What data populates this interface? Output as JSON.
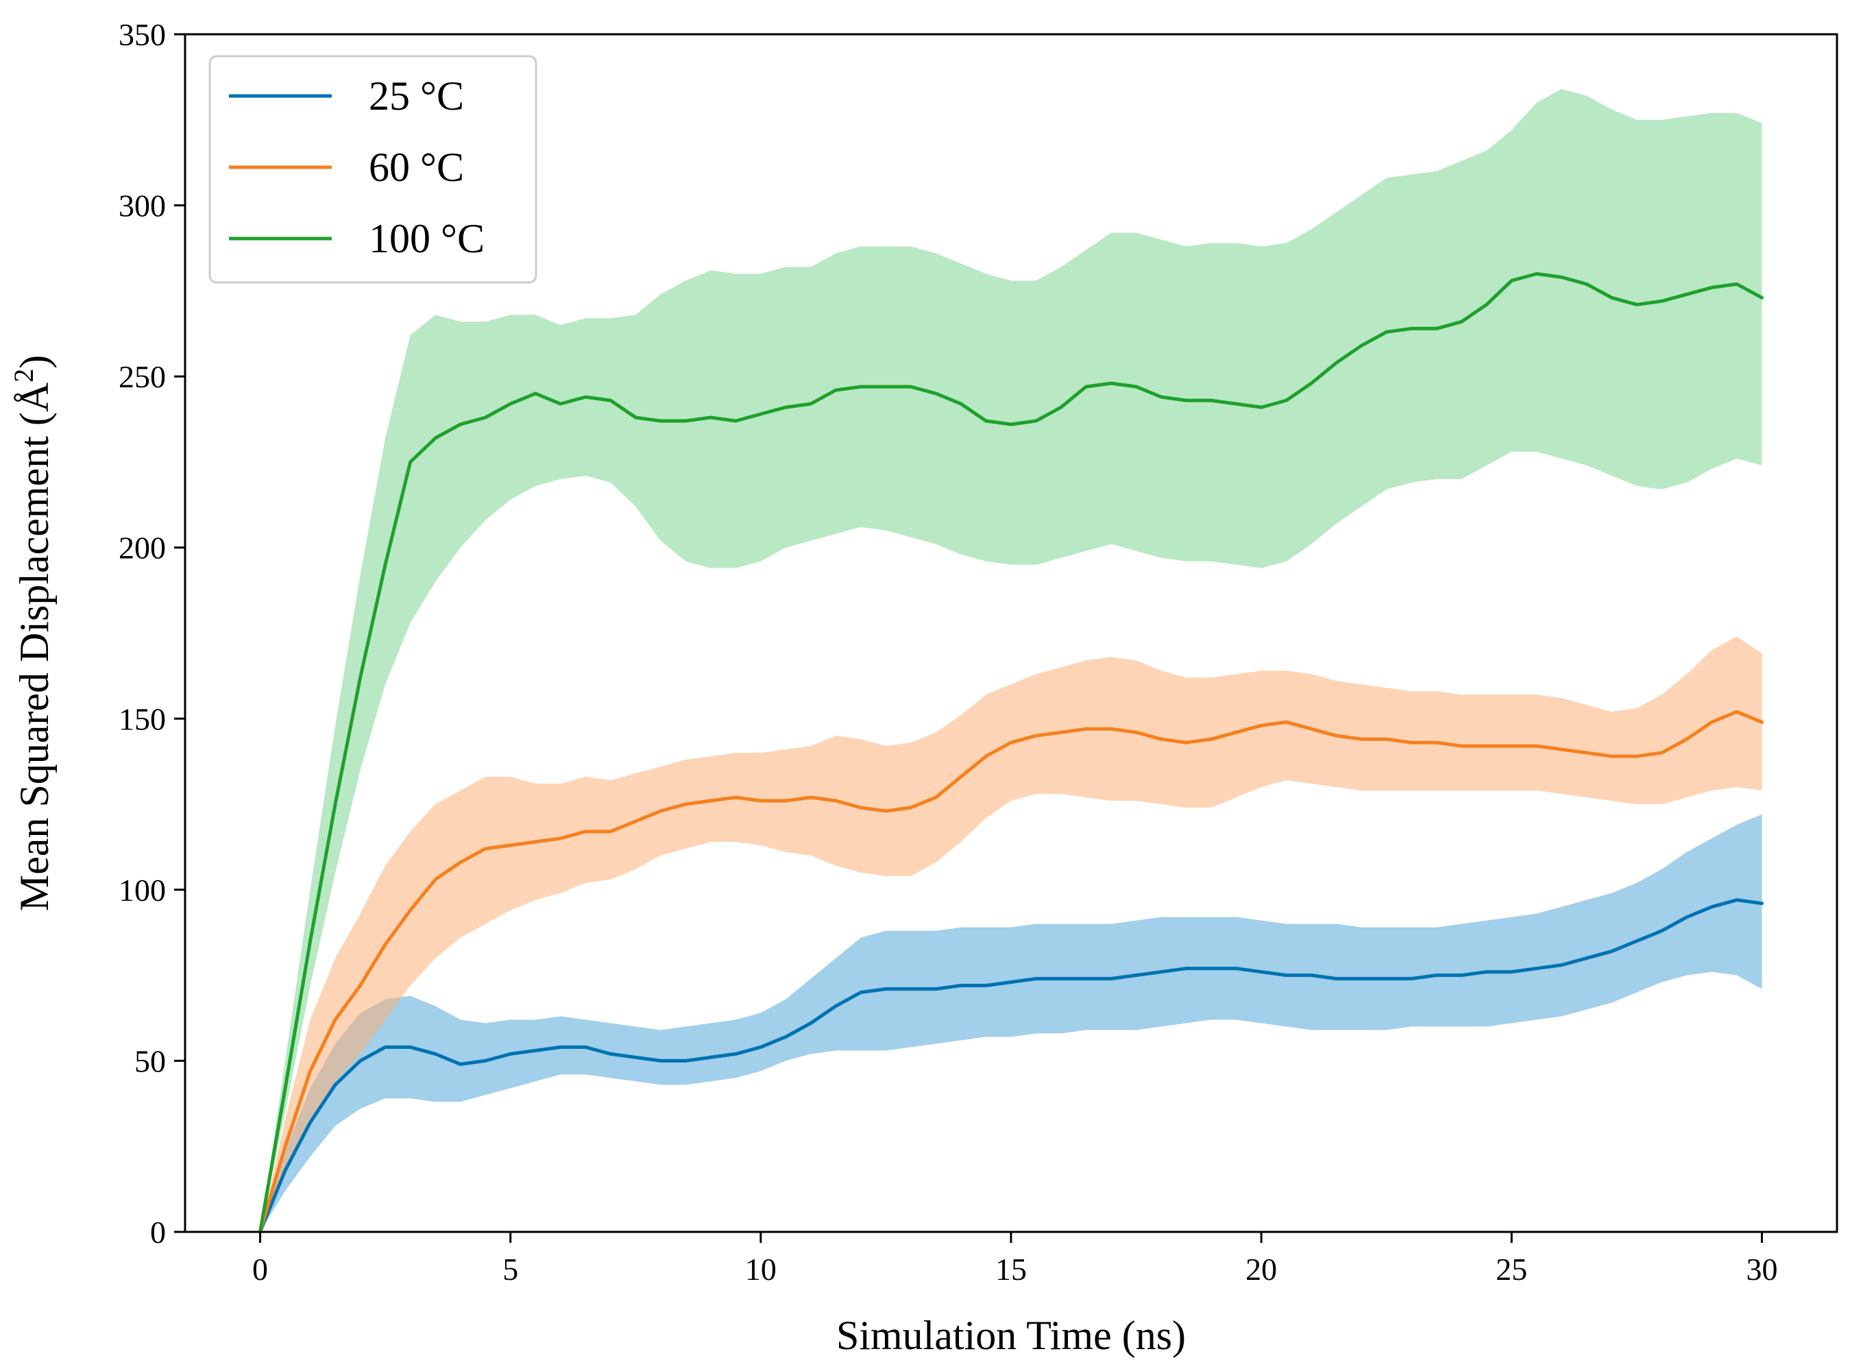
{
  "chart_data": {
    "type": "line",
    "title": "",
    "xlabel": "Simulation Time (ns)",
    "ylabel_main": "Mean Squared Displacement (",
    "ylabel_unit": "Å",
    "ylabel_sup": "2",
    "ylabel_close": ")",
    "xlim": [
      -1.5,
      31.5
    ],
    "ylim": [
      0,
      350
    ],
    "xticks": [
      0,
      5,
      10,
      15,
      20,
      25,
      30
    ],
    "yticks": [
      0,
      50,
      100,
      150,
      200,
      250,
      300,
      350
    ],
    "grid": false,
    "legend_position": "top-left",
    "series": [
      {
        "name": "25 °C",
        "color": "#0072b2",
        "band_color": "#56a8d8",
        "x": [
          0,
          0.5,
          1,
          1.5,
          2,
          2.5,
          3,
          3.5,
          4,
          4.5,
          5,
          5.5,
          6,
          6.5,
          7,
          7.5,
          8,
          8.5,
          9,
          9.5,
          10,
          10.5,
          11,
          11.5,
          12,
          12.5,
          13,
          13.5,
          14,
          14.5,
          15,
          15.5,
          16,
          16.5,
          17,
          17.5,
          18,
          18.5,
          19,
          19.5,
          20,
          20.5,
          21,
          21.5,
          22,
          22.5,
          23,
          23.5,
          24,
          24.5,
          25,
          25.5,
          26,
          26.5,
          27,
          27.5,
          28,
          28.5,
          29,
          29.5,
          30
        ],
        "y": [
          0,
          18,
          32,
          43,
          50,
          54,
          54,
          52,
          49,
          50,
          52,
          53,
          54,
          54,
          52,
          51,
          50,
          50,
          51,
          52,
          54,
          57,
          61,
          66,
          70,
          71,
          71,
          71,
          72,
          72,
          73,
          74,
          74,
          74,
          74,
          75,
          76,
          77,
          77,
          77,
          76,
          75,
          75,
          74,
          74,
          74,
          74,
          75,
          75,
          76,
          76,
          77,
          78,
          80,
          82,
          85,
          88,
          92,
          95,
          97,
          96
        ],
        "lower": [
          0,
          12,
          22,
          31,
          36,
          39,
          39,
          38,
          38,
          40,
          42,
          44,
          46,
          46,
          45,
          44,
          43,
          43,
          44,
          45,
          47,
          50,
          52,
          53,
          53,
          53,
          54,
          55,
          56,
          57,
          57,
          58,
          58,
          59,
          59,
          59,
          60,
          61,
          62,
          62,
          61,
          60,
          59,
          59,
          59,
          59,
          60,
          60,
          60,
          60,
          61,
          62,
          63,
          65,
          67,
          70,
          73,
          75,
          76,
          75,
          71
        ],
        "upper": [
          0,
          24,
          42,
          55,
          64,
          68,
          69,
          66,
          62,
          61,
          62,
          62,
          63,
          62,
          61,
          60,
          59,
          60,
          61,
          62,
          64,
          68,
          74,
          80,
          86,
          88,
          88,
          88,
          89,
          89,
          89,
          90,
          90,
          90,
          90,
          91,
          92,
          92,
          92,
          92,
          91,
          90,
          90,
          90,
          89,
          89,
          89,
          89,
          90,
          91,
          92,
          93,
          95,
          97,
          99,
          102,
          106,
          111,
          115,
          119,
          122
        ]
      },
      {
        "name": "60 °C",
        "color": "#f5801e",
        "band_color": "#fbb078",
        "x": [
          0,
          0.5,
          1,
          1.5,
          2,
          2.5,
          3,
          3.5,
          4,
          4.5,
          5,
          5.5,
          6,
          6.5,
          7,
          7.5,
          8,
          8.5,
          9,
          9.5,
          10,
          10.5,
          11,
          11.5,
          12,
          12.5,
          13,
          13.5,
          14,
          14.5,
          15,
          15.5,
          16,
          16.5,
          17,
          17.5,
          18,
          18.5,
          19,
          19.5,
          20,
          20.5,
          21,
          21.5,
          22,
          22.5,
          23,
          23.5,
          24,
          24.5,
          25,
          25.5,
          26,
          26.5,
          27,
          27.5,
          28,
          28.5,
          29,
          29.5,
          30
        ],
        "y": [
          0,
          25,
          47,
          62,
          72,
          84,
          94,
          103,
          108,
          112,
          113,
          114,
          115,
          117,
          117,
          120,
          123,
          125,
          126,
          127,
          126,
          126,
          127,
          126,
          124,
          123,
          124,
          127,
          133,
          139,
          143,
          145,
          146,
          147,
          147,
          146,
          144,
          143,
          144,
          146,
          148,
          149,
          147,
          145,
          144,
          144,
          143,
          143,
          142,
          142,
          142,
          142,
          141,
          140,
          139,
          139,
          140,
          144,
          149,
          152,
          149
        ],
        "lower": [
          0,
          18,
          33,
          44,
          52,
          62,
          72,
          80,
          86,
          90,
          94,
          97,
          99,
          102,
          103,
          106,
          110,
          112,
          114,
          114,
          113,
          111,
          110,
          107,
          105,
          104,
          104,
          108,
          114,
          121,
          126,
          128,
          128,
          127,
          126,
          126,
          125,
          124,
          124,
          127,
          130,
          132,
          131,
          130,
          129,
          129,
          129,
          129,
          129,
          129,
          129,
          129,
          128,
          127,
          126,
          125,
          125,
          127,
          129,
          130,
          129
        ],
        "upper": [
          0,
          33,
          62,
          80,
          93,
          107,
          117,
          125,
          129,
          133,
          133,
          131,
          131,
          133,
          132,
          134,
          136,
          138,
          139,
          140,
          140,
          141,
          142,
          145,
          144,
          142,
          143,
          146,
          151,
          157,
          160,
          163,
          165,
          167,
          168,
          167,
          164,
          162,
          162,
          163,
          164,
          164,
          163,
          161,
          160,
          159,
          158,
          158,
          157,
          157,
          157,
          157,
          156,
          154,
          152,
          153,
          157,
          163,
          170,
          174,
          169
        ]
      },
      {
        "name": "100 °C",
        "color": "#1fa02c",
        "band_color": "#7fd594",
        "x": [
          0,
          0.5,
          1,
          1.5,
          2,
          2.5,
          3,
          3.5,
          4,
          4.5,
          5,
          5.5,
          6,
          6.5,
          7,
          7.5,
          8,
          8.5,
          9,
          9.5,
          10,
          10.5,
          11,
          11.5,
          12,
          12.5,
          13,
          13.5,
          14,
          14.5,
          15,
          15.5,
          16,
          16.5,
          17,
          17.5,
          18,
          18.5,
          19,
          19.5,
          20,
          20.5,
          21,
          21.5,
          22,
          22.5,
          23,
          23.5,
          24,
          24.5,
          25,
          25.5,
          26,
          26.5,
          27,
          27.5,
          28,
          28.5,
          29,
          29.5,
          30
        ],
        "y": [
          0,
          42,
          85,
          125,
          162,
          195,
          225,
          232,
          236,
          238,
          242,
          245,
          242,
          244,
          243,
          238,
          237,
          237,
          238,
          237,
          239,
          241,
          242,
          246,
          247,
          247,
          247,
          245,
          242,
          237,
          236,
          237,
          241,
          247,
          248,
          247,
          244,
          243,
          243,
          242,
          241,
          243,
          248,
          254,
          259,
          263,
          264,
          264,
          266,
          271,
          278,
          280,
          279,
          277,
          273,
          271,
          272,
          274,
          276,
          277,
          273
        ],
        "lower": [
          0,
          35,
          72,
          105,
          135,
          160,
          178,
          190,
          200,
          208,
          214,
          218,
          220,
          221,
          219,
          212,
          202,
          196,
          194,
          194,
          196,
          200,
          202,
          204,
          206,
          205,
          203,
          201,
          198,
          196,
          195,
          195,
          197,
          199,
          201,
          199,
          197,
          196,
          196,
          195,
          194,
          196,
          201,
          207,
          212,
          217,
          219,
          220,
          220,
          224,
          228,
          228,
          226,
          224,
          221,
          218,
          217,
          219,
          223,
          226,
          224
        ],
        "upper": [
          0,
          50,
          100,
          148,
          192,
          232,
          262,
          268,
          266,
          266,
          268,
          268,
          265,
          267,
          267,
          268,
          274,
          278,
          281,
          280,
          280,
          282,
          282,
          286,
          288,
          288,
          288,
          286,
          283,
          280,
          278,
          278,
          282,
          287,
          292,
          292,
          290,
          288,
          289,
          289,
          288,
          289,
          293,
          298,
          303,
          308,
          309,
          310,
          313,
          316,
          322,
          330,
          334,
          332,
          328,
          325,
          325,
          326,
          327,
          327,
          324
        ]
      }
    ]
  }
}
